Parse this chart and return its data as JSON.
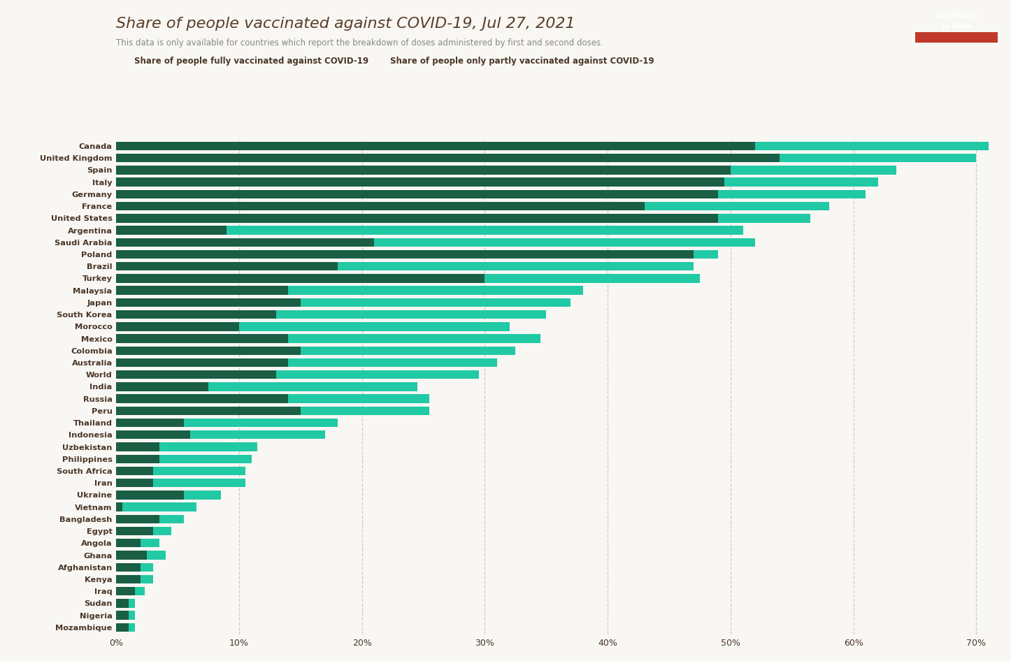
{
  "title": "Share of people vaccinated against COVID-19, Jul 27, 2021",
  "subtitle": "This data is only available for countries which report the breakdown of doses administered by first and second doses.",
  "legend_full": "Share of people fully vaccinated against COVID-19",
  "legend_partial": "Share of people only partly vaccinated against COVID-19",
  "color_full": "#1a5e45",
  "color_partial": "#22c9a5",
  "background_color": "#f9f7f4",
  "countries": [
    "Canada",
    "United Kingdom",
    "Spain",
    "Italy",
    "Germany",
    "France",
    "United States",
    "Argentina",
    "Saudi Arabia",
    "Poland",
    "Brazil",
    "Turkey",
    "Malaysia",
    "Japan",
    "South Korea",
    "Morocco",
    "Mexico",
    "Colombia",
    "Australia",
    "World",
    "India",
    "Russia",
    "Peru",
    "Thailand",
    "Indonesia",
    "Uzbekistan",
    "Philippines",
    "South Africa",
    "Iran",
    "Ukraine",
    "Vietnam",
    "Bangladesh",
    "Egypt",
    "Angola",
    "Ghana",
    "Afghanistan",
    "Kenya",
    "Iraq",
    "Sudan",
    "Nigeria",
    "Mozambique"
  ],
  "fully_vaccinated": [
    52.0,
    54.0,
    50.0,
    49.5,
    49.0,
    43.0,
    49.0,
    9.0,
    21.0,
    47.0,
    18.0,
    30.0,
    14.0,
    15.0,
    13.0,
    10.0,
    14.0,
    15.0,
    14.0,
    13.0,
    7.5,
    14.0,
    15.0,
    5.5,
    6.0,
    3.5,
    3.5,
    3.0,
    3.0,
    5.5,
    0.5,
    3.5,
    3.0,
    2.0,
    2.5,
    2.0,
    2.0,
    1.5,
    1.0,
    1.0,
    1.0
  ],
  "partly_vaccinated": [
    19.0,
    16.0,
    13.5,
    12.5,
    12.0,
    15.0,
    7.5,
    42.0,
    31.0,
    2.0,
    29.0,
    17.5,
    24.0,
    22.0,
    22.0,
    22.0,
    20.5,
    17.5,
    17.0,
    16.5,
    17.0,
    11.5,
    10.5,
    12.5,
    11.0,
    8.0,
    7.5,
    7.5,
    7.5,
    3.0,
    6.0,
    2.0,
    1.5,
    1.5,
    1.5,
    1.0,
    1.0,
    0.8,
    0.5,
    0.5,
    0.5
  ],
  "xlim": [
    0,
    72
  ],
  "xticks": [
    0,
    10,
    20,
    30,
    40,
    50,
    60,
    70
  ],
  "xticklabels": [
    "0%",
    "10%",
    "20%",
    "30%",
    "40%",
    "50%",
    "60%",
    "70%"
  ],
  "title_color": "#5a3e28",
  "subtitle_color": "#888888",
  "label_color": "#4a3728",
  "grid_color": "#cccccc",
  "owid_box_dark": "#1a2e4a",
  "owid_box_red": "#c0392b",
  "owid_text_color": "#ffffff"
}
